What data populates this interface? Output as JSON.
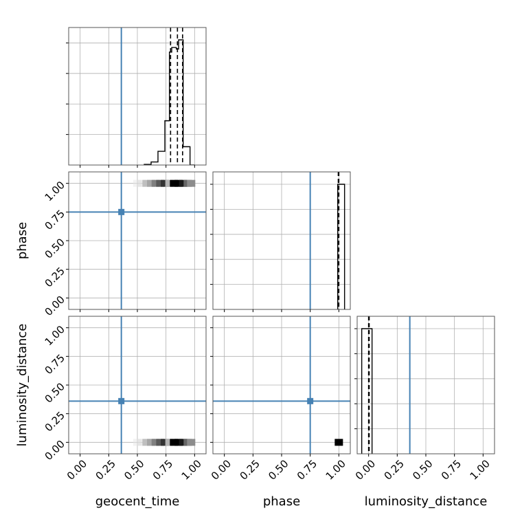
{
  "chart_data": {
    "type": "corner",
    "parameters": [
      "geocent_time",
      "phase",
      "luminosity_distance"
    ],
    "axis_labels": {
      "x": [
        "geocent_time",
        "phase",
        "luminosity_distance"
      ],
      "y": [
        "phase",
        "luminosity_distance"
      ]
    },
    "tick_values": [
      0.0,
      0.25,
      0.5,
      0.75,
      1.0
    ],
    "tick_labels": [
      "0.00",
      "0.25",
      "0.50",
      "0.75",
      "1.00"
    ],
    "axis_range": [
      -0.1,
      1.1
    ],
    "truths": {
      "geocent_time": 0.36,
      "phase": 0.75,
      "luminosity_distance": 0.36
    },
    "truth_color": "#4682b4",
    "histograms": [
      {
        "parameter": "geocent_time",
        "bin_edges": [
          0.56,
          0.62,
          0.68,
          0.74,
          0.78,
          0.8,
          0.84,
          0.86,
          0.88,
          0.9,
          0.96,
          1.0
        ],
        "counts": [
          0.02,
          0.1,
          0.45,
          1.45,
          3.7,
          3.85,
          3.8,
          4.1,
          4.1,
          0.6,
          0.0
        ],
        "quantiles": [
          0.79,
          0.85,
          0.895
        ]
      },
      {
        "parameter": "phase",
        "bin_edges": [
          0.99,
          1.006,
          1.05
        ],
        "counts": [
          1.0,
          1.0
        ],
        "quantiles": [
          0.995,
          1.0
        ]
      },
      {
        "parameter": "luminosity_distance",
        "bin_edges": [
          -0.06,
          -0.045,
          0.03
        ],
        "counts": [
          1.0,
          1.0
        ],
        "quantiles": [
          0.0,
          0.005
        ]
      }
    ],
    "panels_2d": [
      {
        "x": "geocent_time",
        "y": "phase",
        "samples": [
          {
            "x": 0.5,
            "y": 1.0,
            "w": 0.1
          },
          {
            "x": 0.54,
            "y": 1.0,
            "w": 0.15
          },
          {
            "x": 0.58,
            "y": 1.0,
            "w": 0.25
          },
          {
            "x": 0.62,
            "y": 1.0,
            "w": 0.35
          },
          {
            "x": 0.66,
            "y": 1.0,
            "w": 0.5
          },
          {
            "x": 0.7,
            "y": 1.0,
            "w": 0.65
          },
          {
            "x": 0.74,
            "y": 1.0,
            "w": 0.8
          },
          {
            "x": 0.78,
            "y": 1.0,
            "w": 0.3
          },
          {
            "x": 0.82,
            "y": 1.0,
            "w": 1.0
          },
          {
            "x": 0.86,
            "y": 1.0,
            "w": 1.0
          },
          {
            "x": 0.9,
            "y": 1.0,
            "w": 0.9
          },
          {
            "x": 0.94,
            "y": 1.0,
            "w": 0.6
          },
          {
            "x": 0.97,
            "y": 1.0,
            "w": 0.45
          }
        ]
      },
      {
        "x": "geocent_time",
        "y": "luminosity_distance",
        "samples": [
          {
            "x": 0.5,
            "y": 0.0,
            "w": 0.1
          },
          {
            "x": 0.54,
            "y": 0.0,
            "w": 0.15
          },
          {
            "x": 0.58,
            "y": 0.0,
            "w": 0.25
          },
          {
            "x": 0.62,
            "y": 0.0,
            "w": 0.35
          },
          {
            "x": 0.66,
            "y": 0.0,
            "w": 0.5
          },
          {
            "x": 0.7,
            "y": 0.0,
            "w": 0.65
          },
          {
            "x": 0.74,
            "y": 0.0,
            "w": 0.8
          },
          {
            "x": 0.78,
            "y": 0.0,
            "w": 0.3
          },
          {
            "x": 0.82,
            "y": 0.0,
            "w": 1.0
          },
          {
            "x": 0.86,
            "y": 0.0,
            "w": 1.0
          },
          {
            "x": 0.9,
            "y": 0.0,
            "w": 0.9
          },
          {
            "x": 0.94,
            "y": 0.0,
            "w": 0.6
          },
          {
            "x": 0.97,
            "y": 0.0,
            "w": 0.45
          }
        ]
      },
      {
        "x": "phase",
        "y": "luminosity_distance",
        "samples": [
          {
            "x": 1.0,
            "y": 0.0,
            "w": 1.0
          }
        ]
      }
    ],
    "grid": true,
    "line_color": "#000000"
  }
}
